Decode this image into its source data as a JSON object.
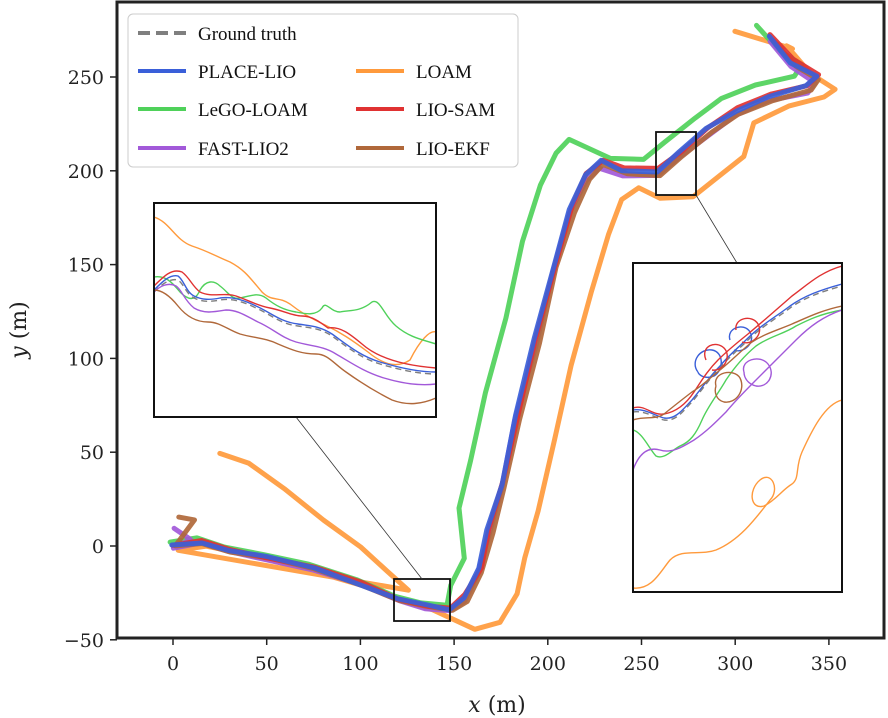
{
  "chart_data": {
    "type": "line",
    "title": "",
    "xlabel": "x (m)",
    "ylabel": "y (m)",
    "xlabel_var": "x",
    "ylabel_var": "y",
    "axis_unit": "(m)",
    "xlim": [
      -30,
      380
    ],
    "ylim": [
      -50,
      283
    ],
    "xticks": [
      0,
      50,
      100,
      150,
      200,
      250,
      300,
      350
    ],
    "yticks": [
      -50,
      0,
      50,
      100,
      150,
      200,
      250
    ],
    "xtick_labels": [
      "0",
      "50",
      "100",
      "150",
      "200",
      "250",
      "300",
      "350"
    ],
    "ytick_labels": [
      "−50",
      "0",
      "50",
      "100",
      "150",
      "200",
      "250"
    ],
    "grid": false,
    "legend_position": "top-left",
    "legend": [
      {
        "name": "Ground truth",
        "color": "#7f7f7f",
        "style": "dashed"
      },
      {
        "name": "PLACE-LIO",
        "color": "#3a5fd9",
        "style": "solid"
      },
      {
        "name": "LeGO-LOAM",
        "color": "#4fd15a",
        "style": "solid"
      },
      {
        "name": "FAST-LIO2",
        "color": "#a259d9",
        "style": "solid"
      },
      {
        "name": "LOAM",
        "color": "#ff9a3c",
        "style": "solid"
      },
      {
        "name": "LIO-SAM",
        "color": "#e03232",
        "style": "solid"
      },
      {
        "name": "LIO-EKF",
        "color": "#b0683a",
        "style": "solid"
      }
    ],
    "series": [
      {
        "name": "LOAM",
        "color": "#ff9a3c",
        "offset": [
          10,
          -6
        ],
        "start": [
          25,
          50
        ],
        "head": [
          [
            25,
            50
          ],
          [
            40,
            44
          ],
          [
            60,
            30
          ],
          [
            80,
            14
          ],
          [
            100,
            0
          ],
          [
            115,
            -14
          ],
          [
            125,
            -24
          ]
        ]
      },
      {
        "name": "LeGO-LOAM",
        "color": "#4fd15a",
        "offset": [
          -7,
          6
        ],
        "start": [
          0,
          0
        ],
        "head": []
      },
      {
        "name": "FAST-LIO2",
        "color": "#a259d9",
        "offset": [
          0,
          -3
        ],
        "start": [
          0,
          9
        ],
        "head": [
          [
            0,
            9
          ],
          [
            10,
            4
          ]
        ]
      },
      {
        "name": "LIO-EKF",
        "color": "#b0683a",
        "offset": [
          2,
          -2
        ],
        "start": [
          3,
          16
        ],
        "head": [
          [
            3,
            16
          ],
          [
            12,
            14
          ]
        ]
      },
      {
        "name": "LIO-SAM",
        "color": "#e03232",
        "offset": [
          1,
          1
        ],
        "start": [
          0,
          0
        ],
        "head": []
      },
      {
        "name": "PLACE-LIO",
        "color": "#3a5fd9",
        "offset": [
          0,
          0
        ],
        "start": [
          0,
          0
        ],
        "head": []
      }
    ],
    "base_path": [
      [
        0,
        0
      ],
      [
        15,
        2
      ],
      [
        30,
        -2
      ],
      [
        50,
        -6
      ],
      [
        75,
        -12
      ],
      [
        100,
        -20
      ],
      [
        120,
        -28
      ],
      [
        135,
        -32
      ],
      [
        148,
        -34
      ],
      [
        155,
        -27
      ],
      [
        163,
        -12
      ],
      [
        168,
        8
      ],
      [
        175,
        33
      ],
      [
        183,
        70
      ],
      [
        193,
        110
      ],
      [
        203,
        150
      ],
      [
        212,
        180
      ],
      [
        220,
        198
      ],
      [
        228,
        205
      ],
      [
        240,
        200
      ],
      [
        258,
        200
      ],
      [
        270,
        210
      ],
      [
        285,
        222
      ],
      [
        300,
        232
      ],
      [
        318,
        240
      ],
      [
        338,
        245
      ],
      [
        343,
        250
      ],
      [
        330,
        258
      ],
      [
        318,
        272
      ]
    ],
    "insets": [
      {
        "name": "left-zoom",
        "source_box": {
          "x": [
            118,
            148
          ],
          "y": [
            -40,
            -17
          ]
        }
      },
      {
        "name": "right-zoom",
        "source_box": {
          "x": [
            258,
            279
          ],
          "y": [
            187,
            220
          ]
        }
      }
    ]
  }
}
